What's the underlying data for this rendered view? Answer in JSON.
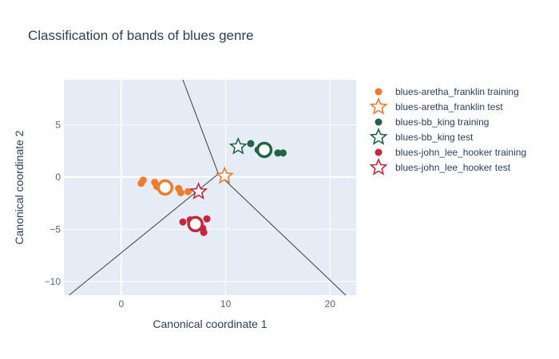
{
  "chart_data": {
    "type": "scatter",
    "title": "Classification of bands of blues genre",
    "xlabel": "Canonical coordinate 1",
    "ylabel": "Canonical coordinate 2",
    "xlim": [
      -5.5,
      22.5
    ],
    "ylim": [
      -11.3,
      9.3
    ],
    "xticks": [
      0,
      10,
      20
    ],
    "yticks": [
      -10,
      -5,
      0,
      5
    ],
    "grid": true,
    "legend_position": "right",
    "decision_boundary": {
      "center": [
        9.3,
        0.3
      ],
      "ends": [
        [
          5.9,
          9.3
        ],
        [
          -5.0,
          -11.3
        ],
        [
          21.5,
          -11.3
        ]
      ]
    },
    "series": [
      {
        "name": "blues-aretha_franklin training",
        "kind": "training",
        "color": "#ef7b2e",
        "points": [
          [
            1.9,
            -0.6
          ],
          [
            2.1,
            -0.3
          ],
          [
            3.2,
            -0.5
          ],
          [
            3.4,
            -0.9
          ],
          [
            4.0,
            -1.0
          ],
          [
            5.5,
            -1.1
          ],
          [
            5.7,
            -1.5
          ],
          [
            6.4,
            -1.4
          ]
        ],
        "centroid": [
          4.2,
          -1.0
        ]
      },
      {
        "name": "blues-aretha_franklin test",
        "kind": "test",
        "color": "#ef7b2e",
        "points": [
          [
            9.9,
            0.1
          ]
        ]
      },
      {
        "name": "blues-bb_king training",
        "kind": "training",
        "color": "#236446",
        "points": [
          [
            11.3,
            2.9
          ],
          [
            12.4,
            3.2
          ],
          [
            13.1,
            2.6
          ],
          [
            13.8,
            2.8
          ],
          [
            15.0,
            2.3
          ],
          [
            15.5,
            2.3
          ]
        ],
        "centroid": [
          13.7,
          2.6
        ]
      },
      {
        "name": "blues-bb_king test",
        "kind": "test",
        "color": "#236446",
        "points": [
          [
            11.2,
            2.9
          ]
        ]
      },
      {
        "name": "blues-john_lee_hooker training",
        "kind": "training",
        "color": "#c7273d",
        "points": [
          [
            5.9,
            -4.3
          ],
          [
            6.6,
            -4.1
          ],
          [
            7.0,
            -4.5
          ],
          [
            7.8,
            -4.9
          ],
          [
            7.9,
            -5.3
          ],
          [
            8.2,
            -4.0
          ],
          [
            7.5,
            -4.7
          ]
        ],
        "centroid": [
          7.1,
          -4.5
        ]
      },
      {
        "name": "blues-john_lee_hooker test",
        "kind": "test",
        "color": "#c7273d",
        "points": [
          [
            7.4,
            -1.4
          ]
        ]
      }
    ]
  }
}
